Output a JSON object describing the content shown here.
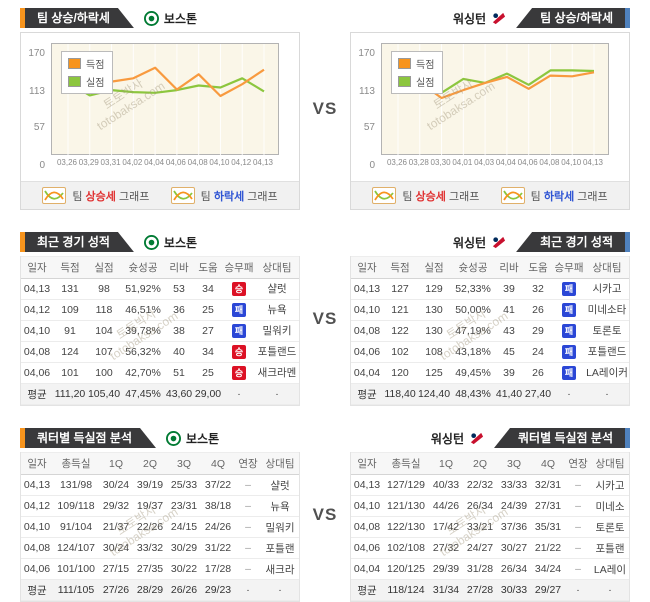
{
  "vs_label": "VS",
  "watermark": {
    "line1": "토토박사",
    "line2": "totobaksa.com"
  },
  "teams": {
    "left": {
      "name": "보스톤"
    },
    "right": {
      "name": "워싱턴"
    }
  },
  "colors": {
    "accent_orange": "#f7941d",
    "accent_blue": "#4f81bd",
    "tab_dark": "#39393b",
    "line_scored": "#f89a3f",
    "line_allowed": "#8cc63e",
    "badge_win": "#dc1125",
    "badge_loss": "#2b47d6",
    "rise_text": "#e03131",
    "fall_text": "#2f55d4",
    "plot_bg": "#faf6e8"
  },
  "trend_section": {
    "tab_label": "팀 상승/하락세",
    "footer": {
      "prefix": "팀",
      "suffix": "그래프",
      "rise_word": "상승세",
      "fall_word": "하락세"
    }
  },
  "chart_data": [
    {
      "type": "line",
      "team": "보스톤",
      "title": "팀 상승/하락세",
      "x": [
        "03,26",
        "03,29",
        "03,31",
        "04,02",
        "04,04",
        "04,06",
        "04,08",
        "04,10",
        "04,12",
        "04,13"
      ],
      "series": [
        {
          "name": "득점",
          "color": "#f89a3f",
          "values": [
            120,
            106,
            113,
            118,
            134,
            101,
            124,
            91,
            109,
            131
          ]
        },
        {
          "name": "실점",
          "color": "#8cc63e",
          "values": [
            112,
            92,
            100,
            97,
            96,
            100,
            107,
            104,
            118,
            98
          ]
        }
      ],
      "ylim": [
        0,
        170
      ],
      "y_ticks": [
        170,
        113,
        57,
        0
      ],
      "legend_position": "top-left",
      "grid": "vertical"
    },
    {
      "type": "line",
      "team": "워싱턴",
      "title": "팀 상승/하락세",
      "x": [
        "03,26",
        "03,28",
        "03,30",
        "04,01",
        "04,03",
        "04,04",
        "04,06",
        "04,08",
        "04,10",
        "04,13"
      ],
      "series": [
        {
          "name": "득점",
          "color": "#f89a3f",
          "values": [
            105,
            112,
            88,
            100,
            111,
            120,
            102,
            122,
            121,
            127
          ]
        },
        {
          "name": "실점",
          "color": "#8cc63e",
          "values": [
            108,
            113,
            96,
            117,
            111,
            125,
            108,
            130,
            130,
            129
          ]
        }
      ],
      "ylim": [
        0,
        170
      ],
      "y_ticks": [
        170,
        113,
        57,
        0
      ],
      "legend_position": "top-left",
      "grid": "vertical"
    }
  ],
  "recent_section": {
    "tab_label": "최근 경기 성적",
    "columns": [
      "일자",
      "득점",
      "실점",
      "슛성공",
      "리바",
      "도움",
      "승무패",
      "상대팀"
    ],
    "left": {
      "rows": [
        [
          "04,13",
          "131",
          "98",
          "51,92%",
          "53",
          "34",
          {
            "badge": "승",
            "type": "win"
          },
          "샬럿"
        ],
        [
          "04,12",
          "109",
          "118",
          "46,51%",
          "36",
          "25",
          {
            "badge": "패",
            "type": "loss"
          },
          "뉴욕"
        ],
        [
          "04,10",
          "91",
          "104",
          "39,78%",
          "38",
          "27",
          {
            "badge": "패",
            "type": "loss"
          },
          "밀워키"
        ],
        [
          "04,08",
          "124",
          "107",
          "56,32%",
          "40",
          "34",
          {
            "badge": "승",
            "type": "win"
          },
          "포틀랜드"
        ],
        [
          "04,06",
          "101",
          "100",
          "42,70%",
          "51",
          "25",
          {
            "badge": "승",
            "type": "win"
          },
          "새크라멘"
        ]
      ],
      "avg": [
        "평균",
        "111,20",
        "105,40",
        "47,45%",
        "43,60",
        "29,00",
        "·",
        "·"
      ]
    },
    "right": {
      "rows": [
        [
          "04,13",
          "127",
          "129",
          "52,33%",
          "39",
          "32",
          {
            "badge": "패",
            "type": "loss"
          },
          "시카고"
        ],
        [
          "04,10",
          "121",
          "130",
          "50,00%",
          "41",
          "26",
          {
            "badge": "패",
            "type": "loss"
          },
          "미네소타"
        ],
        [
          "04,08",
          "122",
          "130",
          "47,19%",
          "43",
          "29",
          {
            "badge": "패",
            "type": "loss"
          },
          "토론토"
        ],
        [
          "04,06",
          "102",
          "108",
          "43,18%",
          "45",
          "24",
          {
            "badge": "패",
            "type": "loss"
          },
          "포틀랜드"
        ],
        [
          "04,04",
          "120",
          "125",
          "49,45%",
          "39",
          "26",
          {
            "badge": "패",
            "type": "loss"
          },
          "LA레이커"
        ]
      ],
      "avg": [
        "평균",
        "118,40",
        "124,40",
        "48,43%",
        "41,40",
        "27,40",
        "·",
        "·"
      ]
    }
  },
  "quarter_section": {
    "tab_label": "쿼터별 득실점 분석",
    "columns": [
      "일자",
      "총득실",
      "1Q",
      "2Q",
      "3Q",
      "4Q",
      "연장",
      "상대팀"
    ],
    "left": {
      "rows": [
        [
          "04,13",
          "131/98",
          "30/24",
          "39/19",
          "25/33",
          "37/22",
          "–",
          "샬럿"
        ],
        [
          "04,12",
          "109/118",
          "29/32",
          "19/37",
          "23/31",
          "38/18",
          "–",
          "뉴욕"
        ],
        [
          "04,10",
          "91/104",
          "21/37",
          "22/26",
          "24/15",
          "24/26",
          "–",
          "밀워키"
        ],
        [
          "04,08",
          "124/107",
          "30/24",
          "33/32",
          "30/29",
          "31/22",
          "–",
          "포틀랜"
        ],
        [
          "04,06",
          "101/100",
          "27/15",
          "27/35",
          "30/22",
          "17/28",
          "–",
          "새크라"
        ]
      ],
      "avg": [
        "평균",
        "111/105",
        "27/26",
        "28/29",
        "26/26",
        "29/23",
        "·",
        "·"
      ]
    },
    "right": {
      "rows": [
        [
          "04,13",
          "127/129",
          "40/33",
          "22/32",
          "33/33",
          "32/31",
          "–",
          "시카고"
        ],
        [
          "04,10",
          "121/130",
          "44/26",
          "26/34",
          "24/39",
          "27/31",
          "–",
          "미네소"
        ],
        [
          "04,08",
          "122/130",
          "17/42",
          "33/21",
          "37/36",
          "35/31",
          "–",
          "토론토"
        ],
        [
          "04,06",
          "102/108",
          "27/32",
          "24/27",
          "30/27",
          "21/22",
          "–",
          "포틀랜"
        ],
        [
          "04,04",
          "120/125",
          "29/39",
          "31/28",
          "26/34",
          "34/24",
          "–",
          "LA레이"
        ]
      ],
      "avg": [
        "평균",
        "118/124",
        "31/34",
        "27/28",
        "30/33",
        "29/27",
        "·",
        "·"
      ]
    }
  }
}
